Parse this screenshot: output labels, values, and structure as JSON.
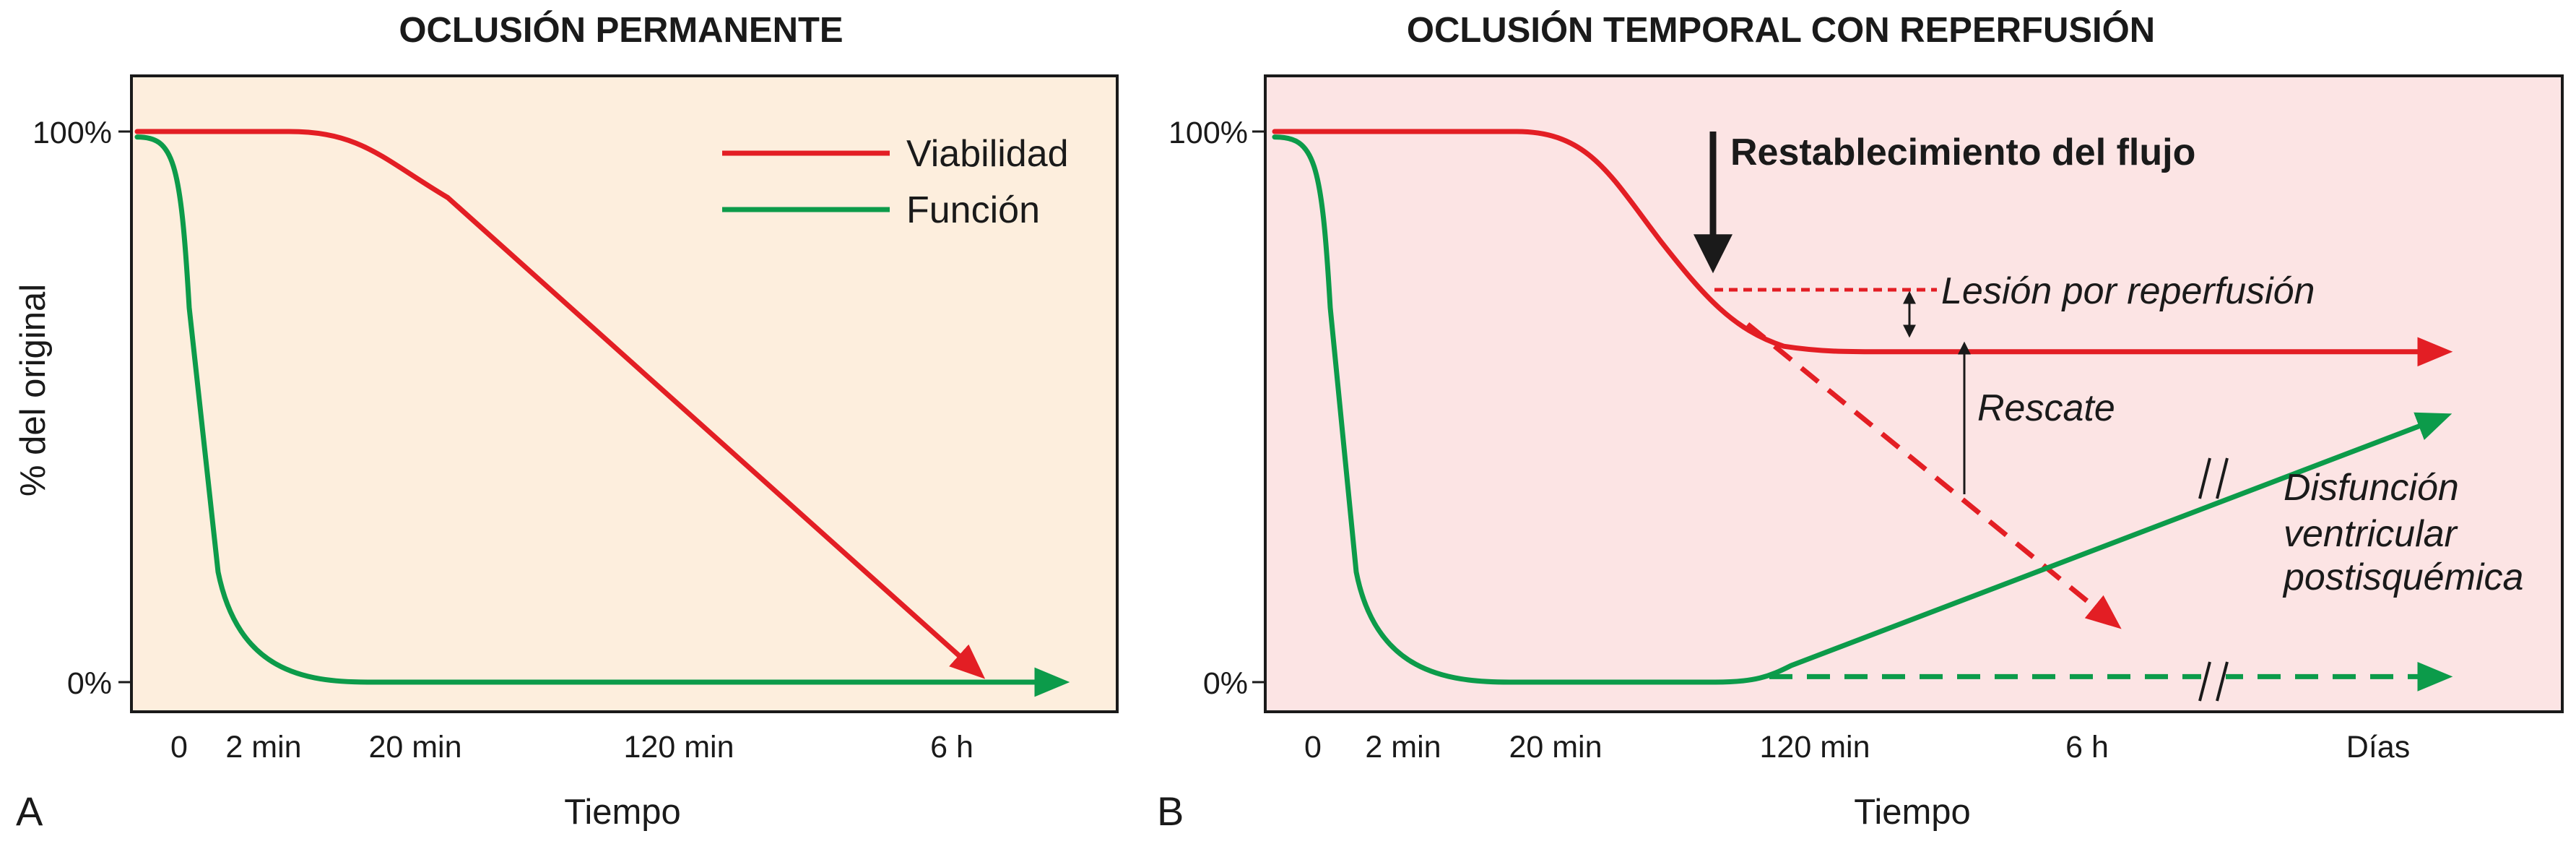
{
  "chart_data": [
    {
      "type": "line",
      "panel_label": "A",
      "title": "OCLUSIÓN PERMANENTE",
      "ylabel": "% del original",
      "xlabel": "Tiempo",
      "categories": [
        "0",
        "2 min",
        "20 min",
        "120 min",
        "6 h"
      ],
      "y_ticks": [
        "100%",
        "0%"
      ],
      "ylim": [
        0,
        100
      ],
      "background": "#fdeedd",
      "legend": {
        "position": "top-right"
      },
      "series": [
        {
          "name": "Viabilidad",
          "color": "#e31e24",
          "x": [
            "0",
            "2 min",
            "20 min",
            "120 min",
            "6 h"
          ],
          "values": [
            100,
            100,
            98,
            53,
            12
          ]
        },
        {
          "name": "Función",
          "color": "#0c9b4a",
          "x": [
            "0",
            "2 min",
            "20 min",
            "120 min",
            "6 h"
          ],
          "values": [
            99,
            19,
            0,
            0,
            0
          ]
        }
      ]
    },
    {
      "type": "line",
      "panel_label": "B",
      "title": "OCLUSIÓN TEMPORAL CON REPERFUSIÓN",
      "xlabel": "Tiempo",
      "categories": [
        "0",
        "2 min",
        "20 min",
        "120 min",
        "6 h",
        "Días"
      ],
      "y_ticks": [
        "100%",
        "0%"
      ],
      "ylim": [
        0,
        100
      ],
      "background": "#fce4e4",
      "series": [
        {
          "color": "#e31e24",
          "style": "solid",
          "x": [
            "0",
            "2 min",
            "20 min",
            "120 min",
            "6 h",
            "Días"
          ],
          "values": [
            100,
            100,
            98,
            68,
            62,
            62
          ]
        },
        {
          "color": "#e31e24",
          "style": "dashed",
          "x": [
            "120 min",
            "6 h"
          ],
          "values": [
            70,
            11
          ]
        },
        {
          "color": "#0c9b4a",
          "style": "solid",
          "x": [
            "0",
            "2 min",
            "20 min",
            "120 min",
            "6 h",
            "Días"
          ],
          "values": [
            99,
            19,
            0,
            2,
            25,
            54
          ]
        },
        {
          "color": "#0c9b4a",
          "style": "dashed",
          "x": [
            "120 min",
            "Días"
          ],
          "values": [
            1,
            1
          ]
        }
      ],
      "annotations": {
        "flow": "Restablecimiento del flujo",
        "reperfusion_injury": "Lesión por reperfusión",
        "rescue": "Rescate",
        "dysfunction": [
          "Disfunción",
          "ventricular",
          "postisquémica"
        ]
      }
    }
  ]
}
